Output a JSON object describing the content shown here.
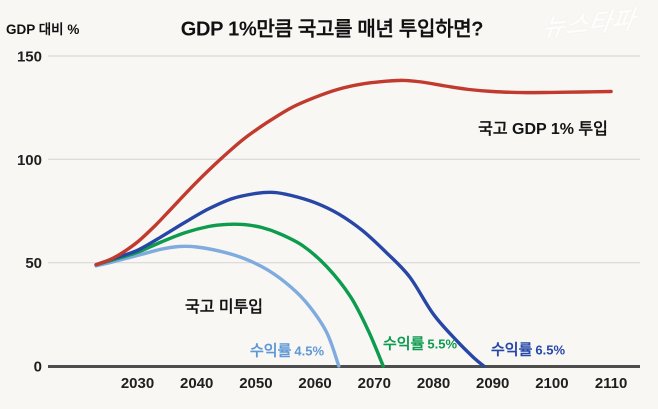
{
  "page": {
    "background": "#f8f7f4"
  },
  "header": {
    "title": "GDP 1%만큼 국고를 매년 투입하면?",
    "y_axis_unit_label": "GDP 대비 %",
    "watermark": "뉴스타파"
  },
  "annotations": {
    "treasury_series_label": "국고 GDP 1% 투입",
    "no_treasury_group_label": "국고 미투입",
    "rate_45": {
      "prefix": "수익률",
      "value": "4.5%"
    },
    "rate_55": {
      "prefix": "수익률",
      "value": "5.5%"
    },
    "rate_65": {
      "prefix": "수익률",
      "value": "6.5%"
    }
  },
  "colors": {
    "red": "#c13a2d",
    "dark_blue": "#2746a6",
    "green": "#0d9b4d",
    "light_blue": "#7fabdf",
    "rate_45_text": "#6098d6",
    "rate_55_text": "#0e9b50",
    "rate_65_text": "#2547a8",
    "grid": "#d8d8d8",
    "axis": "#4d4d4d",
    "tick_text": "#1f1f1f"
  },
  "chart_data": {
    "type": "line",
    "title": "GDP 1%만큼 국고를 매년 투입하면?",
    "xlabel": "",
    "ylabel": "GDP 대비 %",
    "x_ticks": [
      2030,
      2040,
      2050,
      2060,
      2070,
      2080,
      2090,
      2100,
      2110
    ],
    "y_ticks": [
      0,
      50,
      100,
      150
    ],
    "ylim": [
      0,
      150
    ],
    "xlim": [
      2023,
      2113
    ],
    "grid": "horizontal-only",
    "legend_position": "inline-annotations",
    "series": [
      {
        "name": "수익률 4.5%",
        "group": "국고 미투입",
        "color_ref": "light_blue",
        "points": [
          [
            2023,
            48.5
          ],
          [
            2026,
            50.5
          ],
          [
            2030,
            53.5
          ],
          [
            2034,
            56.5
          ],
          [
            2037,
            57.8
          ],
          [
            2040,
            57.6
          ],
          [
            2044,
            55.5
          ],
          [
            2048,
            52
          ],
          [
            2052,
            46.5
          ],
          [
            2056,
            38
          ],
          [
            2059,
            29
          ],
          [
            2062,
            16
          ],
          [
            2064,
            0
          ]
        ]
      },
      {
        "name": "수익률 5.5%",
        "group": "국고 미투입",
        "color_ref": "green",
        "points": [
          [
            2023,
            49
          ],
          [
            2026,
            51.5
          ],
          [
            2030,
            55
          ],
          [
            2034,
            60
          ],
          [
            2038,
            64.5
          ],
          [
            2042,
            67.5
          ],
          [
            2045,
            68.5
          ],
          [
            2048,
            68.4
          ],
          [
            2051,
            67
          ],
          [
            2054,
            64
          ],
          [
            2058,
            58
          ],
          [
            2062,
            48
          ],
          [
            2066,
            33.5
          ],
          [
            2069,
            17
          ],
          [
            2071.5,
            0
          ]
        ]
      },
      {
        "name": "수익률 6.5%",
        "group": "국고 미투입",
        "color_ref": "dark_blue",
        "points": [
          [
            2023,
            49
          ],
          [
            2026,
            52
          ],
          [
            2030,
            56
          ],
          [
            2034,
            62.5
          ],
          [
            2038,
            69.5
          ],
          [
            2042,
            76
          ],
          [
            2046,
            81
          ],
          [
            2050,
            83.5
          ],
          [
            2053,
            84
          ],
          [
            2056,
            82.5
          ],
          [
            2060,
            79
          ],
          [
            2064,
            73.5
          ],
          [
            2068,
            65.5
          ],
          [
            2072,
            55
          ],
          [
            2076,
            43
          ],
          [
            2080,
            25
          ],
          [
            2084,
            12
          ],
          [
            2087,
            3.5
          ],
          [
            2088.5,
            0
          ]
        ]
      },
      {
        "name": "국고 GDP 1% 투입",
        "group": "국고 투입",
        "color_ref": "red",
        "points": [
          [
            2023,
            49
          ],
          [
            2025,
            51
          ],
          [
            2027,
            54
          ],
          [
            2030,
            60
          ],
          [
            2033,
            68
          ],
          [
            2036,
            77
          ],
          [
            2040,
            89
          ],
          [
            2044,
            100
          ],
          [
            2048,
            110
          ],
          [
            2052,
            118
          ],
          [
            2056,
            125
          ],
          [
            2060,
            130
          ],
          [
            2064,
            134
          ],
          [
            2068,
            136.5
          ],
          [
            2072,
            137.8
          ],
          [
            2075,
            138.2
          ],
          [
            2078,
            137.4
          ],
          [
            2082,
            135.5
          ],
          [
            2086,
            133.8
          ],
          [
            2090,
            132.8
          ],
          [
            2095,
            132.3
          ],
          [
            2100,
            132.4
          ],
          [
            2105,
            132.6
          ],
          [
            2110,
            132.8
          ]
        ]
      }
    ]
  }
}
